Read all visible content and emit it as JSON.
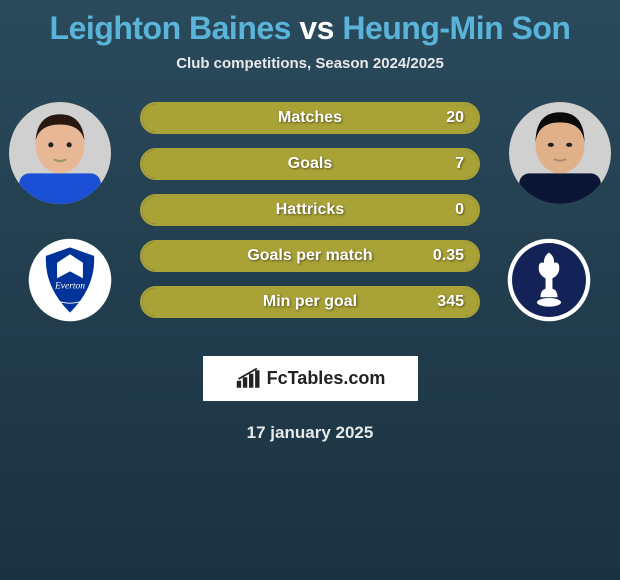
{
  "title_left": "Leighton Baines",
  "title_vs": "vs",
  "title_right": "Heung-Min Son",
  "title_color_left": "#5ab4da",
  "title_color_vs": "#ffffff",
  "title_color_right": "#5ab4da",
  "subtitle": "Club competitions, Season 2024/2025",
  "date": "17 january 2025",
  "watermark": "FcTables.com",
  "bar_border_color": "#a9a237",
  "bar_fill_color": "#a9a237",
  "bar_bg_color": "rgba(255,255,255,0.05)",
  "stats": [
    {
      "label": "Matches",
      "value": "20",
      "fill_pct": 100
    },
    {
      "label": "Goals",
      "value": "7",
      "fill_pct": 100
    },
    {
      "label": "Hattricks",
      "value": "0",
      "fill_pct": 100
    },
    {
      "label": "Goals per match",
      "value": "0.35",
      "fill_pct": 100
    },
    {
      "label": "Min per goal",
      "value": "345",
      "fill_pct": 100
    }
  ],
  "player_left": {
    "name": "Leighton Baines",
    "shirt_color": "#1a4fd6",
    "skin_color": "#e8b896",
    "hair_color": "#2a1810"
  },
  "player_right": {
    "name": "Heung-Min Son",
    "shirt_color": "#0b1635",
    "skin_color": "#e0b088",
    "hair_color": "#0a0a0a"
  },
  "club_left": {
    "name": "Everton",
    "bg_color": "#ffffff",
    "badge_color": "#003399",
    "text": "Everton"
  },
  "club_right": {
    "name": "Tottenham",
    "bg_color": "#ffffff",
    "badge_color": "#132257"
  }
}
